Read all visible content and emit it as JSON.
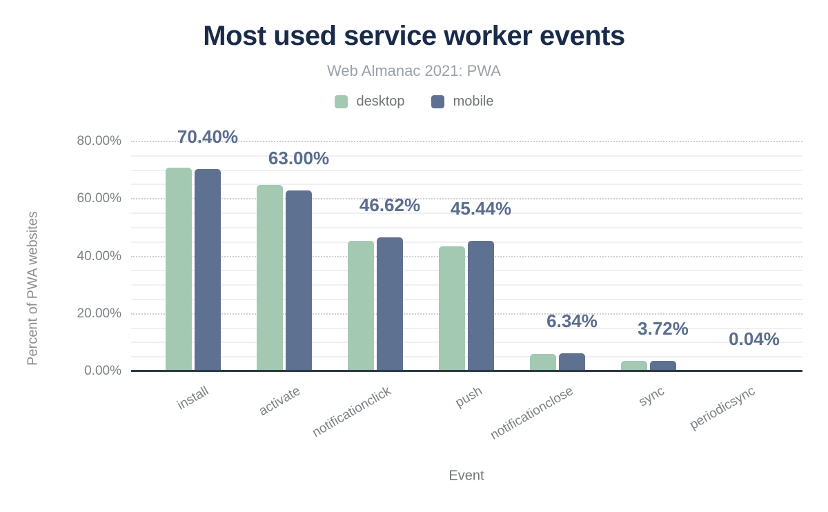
{
  "header": {
    "title": "Most used service worker events",
    "subtitle": "Web Almanac 2021: PWA"
  },
  "legend": {
    "items": [
      {
        "label": "desktop",
        "color": "#a3c9b3"
      },
      {
        "label": "mobile",
        "color": "#5f7190"
      }
    ]
  },
  "axes": {
    "y_title": "Percent of PWA websites",
    "x_title": "Event",
    "y_tick_labels": [
      "0.00%",
      "20.00%",
      "40.00%",
      "60.00%",
      "80.00%"
    ]
  },
  "chart_data": {
    "type": "bar",
    "title": "Most used service worker events",
    "subtitle": "Web Almanac 2021: PWA",
    "xlabel": "Event",
    "ylabel": "Percent of PWA websites",
    "categories": [
      "install",
      "activate",
      "notificationclick",
      "push",
      "notificationclose",
      "sync",
      "periodicsync"
    ],
    "series": [
      {
        "name": "desktop",
        "color": "#a3c9b3",
        "values": [
          70.91,
          64.92,
          45.42,
          43.53,
          5.98,
          3.53,
          0.02
        ]
      },
      {
        "name": "mobile",
        "color": "#5f7190",
        "values": [
          70.4,
          63.0,
          46.62,
          45.44,
          6.34,
          3.72,
          0.04
        ]
      }
    ],
    "data_labels": [
      "70.40%",
      "63.00%",
      "46.62%",
      "45.44%",
      "6.34%",
      "3.72%",
      "0.04%"
    ],
    "data_labels_series": "mobile",
    "ylim": [
      0,
      80
    ],
    "y_tick_step": 20,
    "y_minor_step": 5,
    "grid": true,
    "legend_position": "top",
    "colors": {
      "data_label": "#5a6d8d",
      "axis_line": "#2b3945",
      "title": "#1a2b49",
      "subtitle": "#9aa1a7"
    }
  }
}
